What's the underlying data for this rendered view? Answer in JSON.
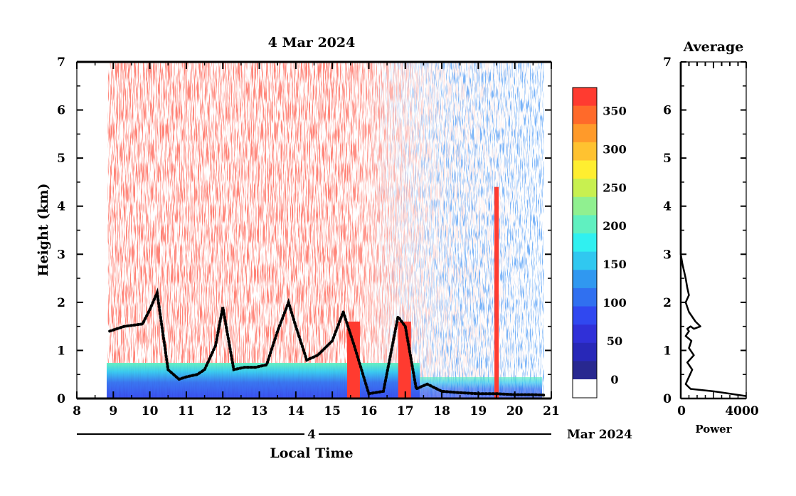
{
  "main_plot": {
    "title": "4 Mar 2024",
    "ylabel": "Height (km)",
    "xlabel": "Local Time",
    "x_ticks": [
      "8",
      "9",
      "10",
      "11",
      "12",
      "13",
      "14",
      "15",
      "16",
      "17",
      "18",
      "19",
      "20",
      "21"
    ],
    "y_ticks": [
      "0",
      "1",
      "2",
      "3",
      "4",
      "5",
      "6",
      "7"
    ],
    "day_label": "4",
    "month_label": "Mar 2024"
  },
  "colorbar": {
    "labels": [
      "350",
      "300",
      "250",
      "200",
      "150",
      "100",
      "50",
      "0"
    ],
    "colors": [
      "#ff3b30",
      "#ff6a2a",
      "#ff9a2a",
      "#ffc230",
      "#ffee30",
      "#c8f050",
      "#90f090",
      "#60f0c0",
      "#30f0f0",
      "#30c8f0",
      "#3098f0",
      "#3070f0",
      "#3048f0",
      "#3030d8",
      "#2828b8",
      "#282890"
    ]
  },
  "side_plot": {
    "title": "Average",
    "y_ticks": [
      "0",
      "1",
      "2",
      "3",
      "4",
      "5",
      "6",
      "7"
    ],
    "x_ticks": [
      "0",
      "4000"
    ],
    "xlabel": "Power"
  },
  "chart_data": [
    {
      "type": "heatmap",
      "title": "4 Mar 2024",
      "xlabel": "Local Time",
      "ylabel": "Height (km)",
      "xlim": [
        8,
        21
      ],
      "ylim": [
        0,
        7
      ],
      "data_x_range": [
        8.85,
        20.85
      ],
      "colorbar": {
        "min": 0,
        "max": 380,
        "ticks": [
          0,
          50,
          100,
          150,
          200,
          250,
          300,
          350
        ]
      },
      "features": {
        "surface_layer_top_km": 0.5,
        "upper_signal": "noisy high values (red) 9–17 h, mostly low/no data after 18 h",
        "strong_echo_columns_h": [
          15.6,
          17.0,
          19.5
        ]
      },
      "cloud_base_trace": {
        "x": [
          8.9,
          9.3,
          9.8,
          10.0,
          10.2,
          10.5,
          10.8,
          11.0,
          11.3,
          11.5,
          11.8,
          12.0,
          12.3,
          12.6,
          12.9,
          13.2,
          13.5,
          13.8,
          14.0,
          14.3,
          14.6,
          15.0,
          15.3,
          15.6,
          16.0,
          16.4,
          16.8,
          17.0,
          17.3,
          17.6,
          18.0,
          18.5,
          19.0,
          19.5,
          20.0,
          20.5,
          20.8
        ],
        "y": [
          1.4,
          1.5,
          1.55,
          1.85,
          2.2,
          0.6,
          0.4,
          0.45,
          0.5,
          0.6,
          1.1,
          1.9,
          0.6,
          0.65,
          0.65,
          0.7,
          1.4,
          2.0,
          1.5,
          0.8,
          0.9,
          1.2,
          1.8,
          1.1,
          0.1,
          0.15,
          1.7,
          1.5,
          0.2,
          0.3,
          0.15,
          0.12,
          0.1,
          0.1,
          0.08,
          0.08,
          0.07
        ]
      }
    },
    {
      "type": "line",
      "title": "Average",
      "xlabel": "Power",
      "xlim": [
        0,
        4000
      ],
      "ylim": [
        0,
        7
      ],
      "series": [
        {
          "x": [
            4000,
            2000,
            600,
            300,
            500,
            700,
            400,
            800,
            500,
            650,
            300,
            500,
            400,
            600,
            800,
            1200,
            900,
            500,
            300,
            500,
            400,
            300,
            100,
            0,
            0,
            0
          ],
          "y": [
            0.05,
            0.15,
            0.2,
            0.3,
            0.45,
            0.6,
            0.75,
            0.9,
            1.05,
            1.2,
            1.3,
            1.4,
            1.45,
            1.5,
            1.45,
            1.5,
            1.6,
            1.8,
            2.0,
            2.15,
            2.3,
            2.5,
            2.8,
            3.0,
            5.0,
            7.0
          ]
        }
      ]
    }
  ]
}
